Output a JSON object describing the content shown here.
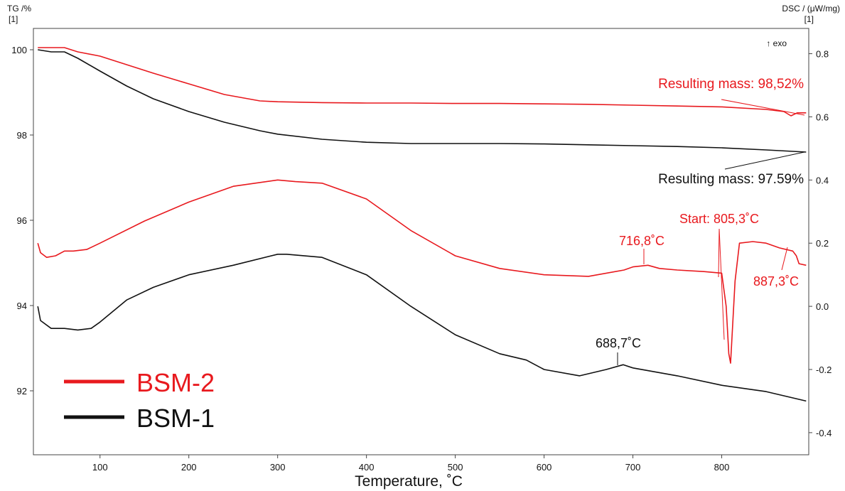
{
  "chart_data": {
    "type": "line",
    "xlabel": "Temperature, ˚C",
    "x_ticks": [
      100,
      200,
      300,
      400,
      500,
      600,
      700,
      800
    ],
    "xlim": [
      25,
      898
    ],
    "left_axis": {
      "label_line1": "TG /%",
      "label_line2": "[1]",
      "ticks": [
        100,
        98,
        96,
        94,
        92
      ],
      "ylim": [
        90.5,
        100.5
      ]
    },
    "right_axis": {
      "label_line1": "DSC / (μW/mg)",
      "label_line2": "[1]",
      "exo_label": "↑ exo",
      "ticks": [
        "0.8",
        "0.6",
        "0.4",
        "0.2",
        "0.0",
        "-0.2",
        "-0.4"
      ],
      "tick_values": [
        0.8,
        0.6,
        0.4,
        0.2,
        0.0,
        -0.2,
        -0.4
      ],
      "ylim": [
        -0.47,
        0.88
      ]
    },
    "colors": {
      "BSM-2": "#e8191e",
      "BSM-1": "#111111"
    },
    "legend": {
      "placement": "bottom-left",
      "entries": [
        "BSM-2",
        "BSM-1"
      ]
    },
    "series": [
      {
        "name": "BSM-2",
        "kind": "TG",
        "axis": "left",
        "x": [
          30,
          45,
          60,
          75,
          100,
          130,
          160,
          200,
          240,
          280,
          300,
          350,
          400,
          450,
          500,
          550,
          600,
          650,
          700,
          750,
          800,
          850,
          870,
          878,
          885,
          895
        ],
        "y": [
          100.05,
          100.05,
          100.05,
          99.95,
          99.85,
          99.65,
          99.45,
          99.2,
          98.95,
          98.8,
          98.78,
          98.76,
          98.75,
          98.75,
          98.74,
          98.74,
          98.73,
          98.72,
          98.7,
          98.68,
          98.66,
          98.6,
          98.55,
          98.45,
          98.52,
          98.52
        ]
      },
      {
        "name": "BSM-1",
        "kind": "TG",
        "axis": "left",
        "x": [
          30,
          45,
          60,
          75,
          100,
          130,
          160,
          200,
          240,
          280,
          300,
          350,
          400,
          450,
          500,
          550,
          600,
          650,
          700,
          750,
          800,
          850,
          895
        ],
        "y": [
          100.0,
          99.95,
          99.95,
          99.8,
          99.5,
          99.15,
          98.85,
          98.55,
          98.3,
          98.1,
          98.02,
          97.9,
          97.83,
          97.8,
          97.8,
          97.8,
          97.79,
          97.77,
          97.75,
          97.73,
          97.7,
          97.65,
          97.6
        ]
      },
      {
        "name": "BSM-2",
        "kind": "DSC",
        "axis": "right",
        "x": [
          30,
          33,
          40,
          50,
          60,
          70,
          85,
          100,
          150,
          200,
          250,
          300,
          320,
          350,
          400,
          450,
          500,
          550,
          600,
          650,
          690,
          700,
          717,
          730,
          750,
          780,
          800,
          805,
          808,
          810,
          815,
          820,
          835,
          850,
          865,
          880,
          884,
          887,
          895
        ],
        "y": [
          0.2,
          0.17,
          0.155,
          0.16,
          0.175,
          0.175,
          0.18,
          0.2,
          0.27,
          0.33,
          0.38,
          0.4,
          0.395,
          0.39,
          0.34,
          0.24,
          0.16,
          0.12,
          0.1,
          0.095,
          0.115,
          0.125,
          0.13,
          0.12,
          0.115,
          0.11,
          0.105,
          0.0,
          -0.15,
          -0.18,
          0.08,
          0.2,
          0.205,
          0.2,
          0.185,
          0.175,
          0.16,
          0.135,
          0.13
        ]
      },
      {
        "name": "BSM-1",
        "kind": "DSC",
        "axis": "right",
        "x": [
          30,
          33,
          45,
          60,
          75,
          90,
          100,
          130,
          160,
          200,
          250,
          300,
          310,
          350,
          400,
          450,
          500,
          550,
          580,
          600,
          640,
          670,
          689,
          700,
          750,
          800,
          850,
          895
        ],
        "y": [
          0.0,
          -0.045,
          -0.07,
          -0.07,
          -0.075,
          -0.07,
          -0.05,
          0.02,
          0.06,
          0.1,
          0.13,
          0.165,
          0.165,
          0.155,
          0.1,
          0.0,
          -0.09,
          -0.15,
          -0.17,
          -0.2,
          -0.22,
          -0.2,
          -0.185,
          -0.195,
          -0.22,
          -0.25,
          -0.27,
          -0.3
        ]
      }
    ],
    "annotations": [
      {
        "text": "Resulting mass: 98,52%",
        "series": "BSM-2",
        "color": "#e8191e"
      },
      {
        "text": "Resulting mass: 97.59%",
        "series": "BSM-1",
        "color": "#111111"
      },
      {
        "text": "716,8˚C",
        "series": "BSM-2",
        "color": "#e8191e"
      },
      {
        "text": "Start: 805,3˚C",
        "series": "BSM-2",
        "color": "#e8191e"
      },
      {
        "text": "887,3˚C",
        "series": "BSM-2",
        "color": "#e8191e"
      },
      {
        "text": "688,7˚C",
        "series": "BSM-1",
        "color": "#111111"
      }
    ]
  }
}
